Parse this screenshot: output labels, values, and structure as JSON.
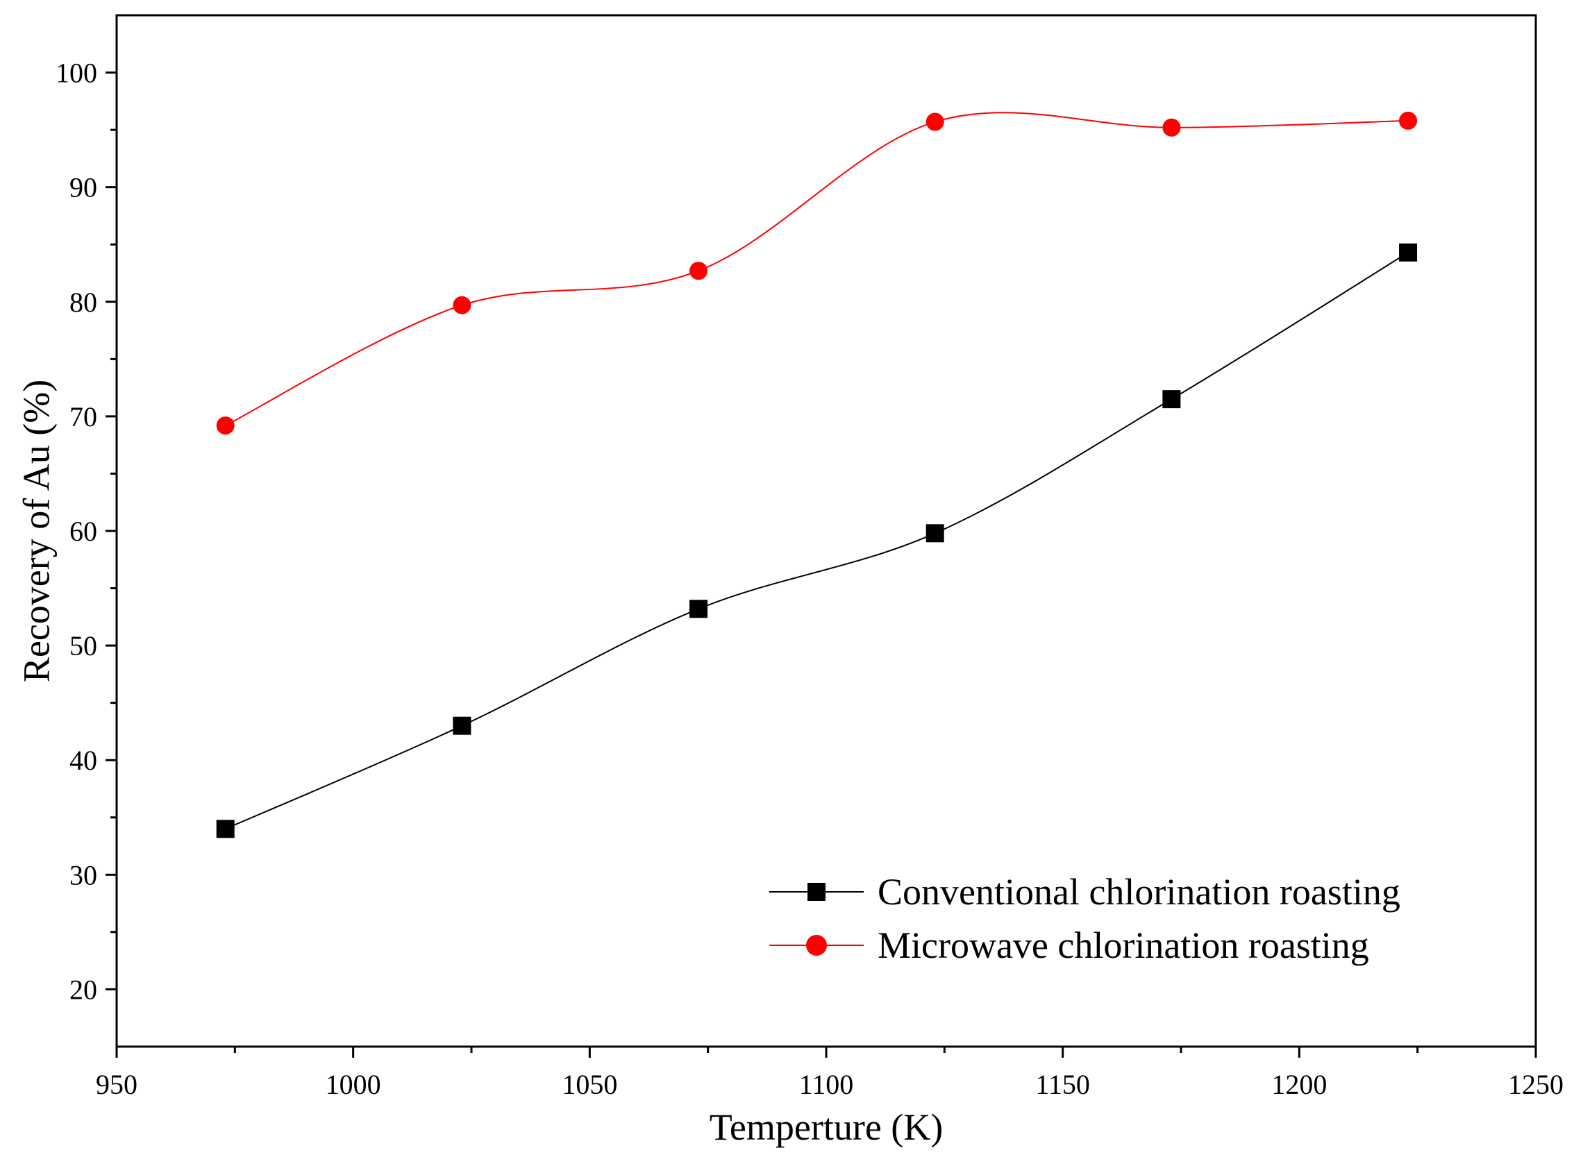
{
  "chart_data": {
    "type": "line",
    "title": "",
    "xlabel": "Temperture (K)",
    "ylabel": "Recovery of Au (%)",
    "xlim": [
      950,
      1250
    ],
    "ylim": [
      15,
      105
    ],
    "xticks": [
      950,
      1000,
      1050,
      1100,
      1150,
      1200,
      1250
    ],
    "yticks": [
      20,
      30,
      40,
      50,
      60,
      70,
      80,
      90,
      100
    ],
    "legend_position": "bottom-right",
    "grid": false,
    "series": [
      {
        "name": "Conventional chlorination roasting",
        "color": "#000000",
        "marker": "square",
        "x": [
          973,
          1023,
          1073,
          1123,
          1173,
          1223
        ],
        "y": [
          34.0,
          43.0,
          53.2,
          59.8,
          71.5,
          84.3
        ]
      },
      {
        "name": "Microwave chlorination roasting",
        "color": "#ff0000",
        "marker": "circle",
        "x": [
          973,
          1023,
          1073,
          1123,
          1173,
          1223
        ],
        "y": [
          69.2,
          79.7,
          82.7,
          95.7,
          95.2,
          95.8
        ]
      }
    ]
  }
}
